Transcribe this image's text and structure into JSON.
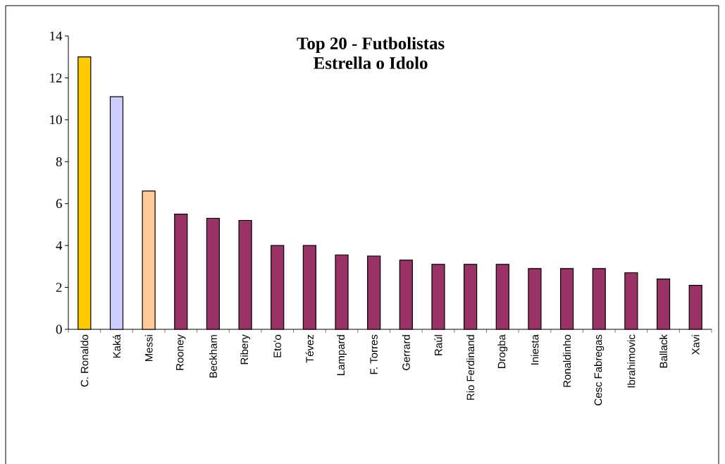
{
  "chart_data": {
    "type": "bar",
    "title": "Top 20 - Futbolistas",
    "subtitle": "Estrella o Idolo",
    "categories": [
      "C. Ronaldo",
      "Kaká",
      "Messi",
      "Rooney",
      "Beckham",
      "Ribery",
      "Eto'o",
      "Tévez",
      "Lampard",
      "F. Torres",
      "Gerrard",
      "Raúl",
      "Rio Ferdinand",
      "Drogba",
      "Iniesta",
      "Ronaldinho",
      "Cesc Fabregas",
      "Ibrahimovic",
      "Ballack",
      "Xavi"
    ],
    "values": [
      13.0,
      11.1,
      6.6,
      5.5,
      5.3,
      5.2,
      4.0,
      4.0,
      3.55,
      3.5,
      3.3,
      3.1,
      3.1,
      3.1,
      2.9,
      2.9,
      2.9,
      2.7,
      2.4,
      2.1
    ],
    "colors": [
      "#ffcc00",
      "#ccccff",
      "#ffcc99",
      "#993366",
      "#993366",
      "#993366",
      "#993366",
      "#993366",
      "#993366",
      "#993366",
      "#993366",
      "#993366",
      "#993366",
      "#993366",
      "#993366",
      "#993366",
      "#993366",
      "#993366",
      "#993366",
      "#993366"
    ],
    "ylim": [
      0,
      14
    ],
    "yticks": [
      0,
      2,
      4,
      6,
      8,
      10,
      12,
      14
    ]
  }
}
